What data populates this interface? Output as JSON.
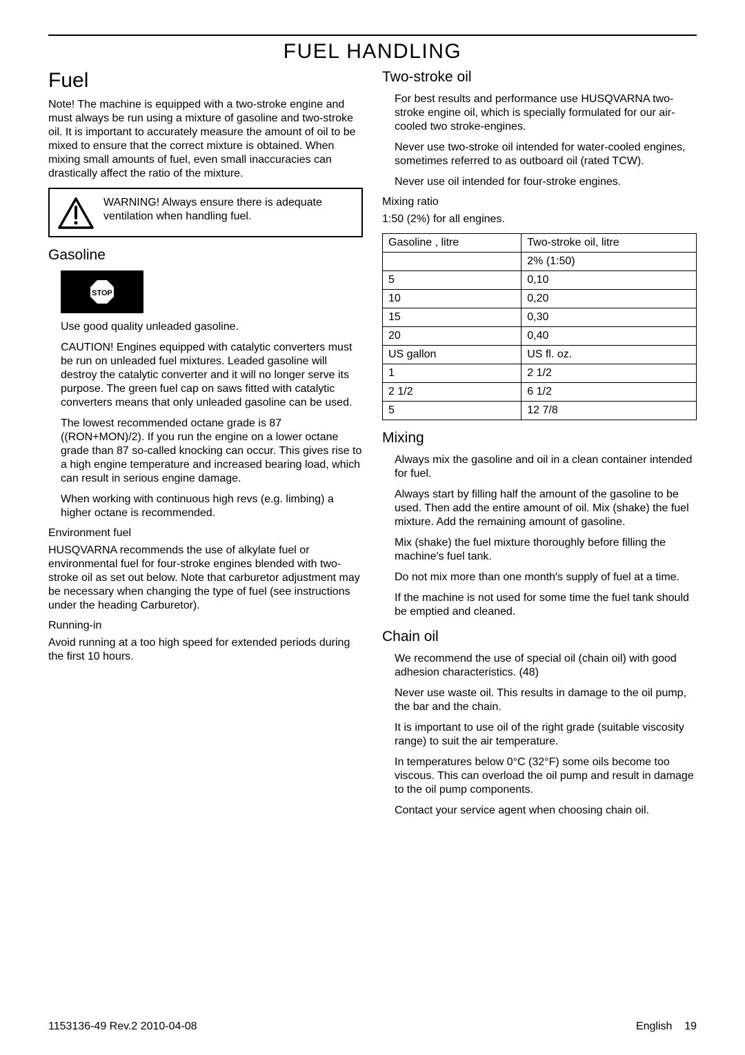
{
  "page": {
    "title": "FUEL HANDLING",
    "footer_left": "1153136-49 Rev.2 2010-04-08",
    "footer_lang": "English",
    "footer_page": "19"
  },
  "left": {
    "h_fuel": "Fuel",
    "note": "Note! The machine is equipped with a two-stroke engine and must always be run using a mixture of gasoline and two-stroke oil. It is important to accurately measure the amount of oil to be mixed to ensure that the correct mixture is obtained. When mixing small amounts of fuel, even small inaccuracies can drastically affect the ratio of the mixture.",
    "warning": "WARNING! Always ensure there is adequate ventilation when handling fuel.",
    "h_gasoline": "Gasoline",
    "gasoline_p1": "Use good quality unleaded gasoline.",
    "gasoline_p2": "CAUTION!  Engines equipped with catalytic converters must be run on unleaded fuel mixtures.  Leaded gasoline will destroy the catalytic converter and it will no longer serve its purpose. The green fuel cap on saws ﬁtted with catalytic converters means that only unleaded gasoline can be used.",
    "gasoline_p3": "The lowest recommended octane grade is 87 ((RON+MON)/2). If you run the engine on a lower octane grade than 87 so-called knocking can occur. This gives rise to a high engine temperature and increased bearing load, which can result in serious engine damage.",
    "gasoline_p4": "When working with continuous high revs (e.g. limbing) a higher octane is recommended.",
    "h_env": "Environment fuel",
    "env_p": "HUSQVARNA recommends the use of alkylate fuel or environmental fuel for four-stroke engines blended with two-stroke oil as set out below. Note that carburetor adjustment may be necessary when changing the type of fuel (see instructions under the heading Carburetor).",
    "h_runin": "Running-in",
    "runin_p": "Avoid running at a too high speed for extended periods during the ﬁrst 10 hours."
  },
  "right": {
    "h_two": "Two-stroke oil",
    "two_p1": "For best results and performance use HUSQVARNA two-stroke engine oil, which is specially formulated for our air-cooled two stroke-engines.",
    "two_p2": "Never use two-stroke oil intended for water-cooled engines, sometimes referred to as outboard oil (rated TCW).",
    "two_p3": "Never use oil intended for four-stroke engines.",
    "h_mixratio": "Mixing ratio",
    "mixratio_p": "1:50 (2%) for all engines.",
    "table": {
      "rows": [
        [
          "Gasoline , litre",
          "Two-stroke oil, litre"
        ],
        [
          "",
          "2% (1:50)"
        ],
        [
          "5",
          "0,10"
        ],
        [
          "10",
          "0,20"
        ],
        [
          "15",
          "0,30"
        ],
        [
          "20",
          "0,40"
        ],
        [
          "US gallon",
          "US ﬂ. oz."
        ],
        [
          "1",
          "2 1/2"
        ],
        [
          "2 1/2",
          "6 1/2"
        ],
        [
          "5",
          "12 7/8"
        ]
      ]
    },
    "h_mixing": "Mixing",
    "mix_p1": "Always mix the gasoline and oil in a clean container intended for fuel.",
    "mix_p2": "Always start by ﬁlling half the amount of the gasoline to be used. Then add the entire amount of oil. Mix (shake) the fuel mixture. Add the remaining amount of gasoline.",
    "mix_p3": "Mix (shake) the fuel mixture thoroughly before ﬁlling the machine′s fuel tank.",
    "mix_p4": "Do not mix more than one month′s supply of fuel at a time.",
    "mix_p5": "If the machine is not used for some time the fuel tank should be emptied and cleaned.",
    "h_chain": "Chain oil",
    "chain_p1": "We recommend the use of special oil (chain oil) with good adhesion characteristics. (48)",
    "chain_p2": "Never use waste oil. This results in damage to the oil pump, the bar and the chain.",
    "chain_p3": "It is important to use oil of the right grade (suitable viscosity range) to suit the air temperature.",
    "chain_p4": "In temperatures below 0°C (32°F) some oils become too viscous. This can overload the oil pump and result in damage to the oil pump components.",
    "chain_p5": "Contact your service agent when choosing chain oil."
  }
}
